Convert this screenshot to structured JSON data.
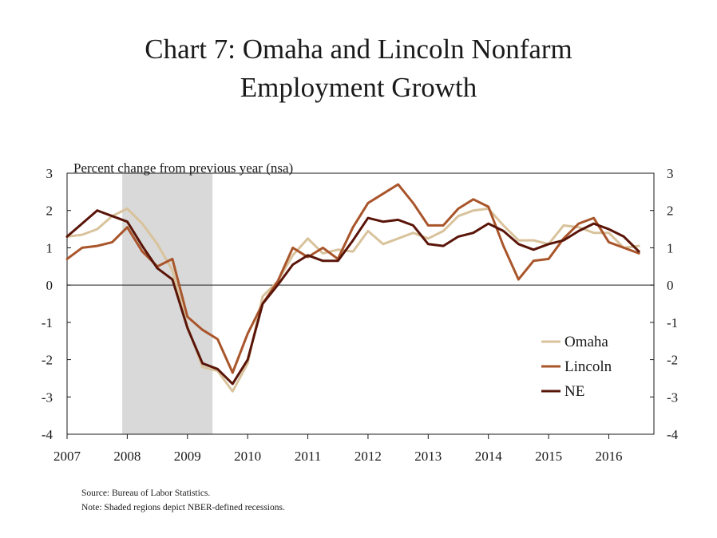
{
  "title_line1": "Chart 7: Omaha and Lincoln Nonfarm",
  "title_line2": "Employment Growth",
  "source": "Source: Bureau of Labor Statistics.",
  "note": "Note: Shaded regions depict NBER-defined recessions.",
  "chart_data": {
    "type": "line",
    "ylabel": "Percent change from previous year (nsa)",
    "ylim": [
      -4,
      3
    ],
    "yticks": [
      3,
      2,
      1,
      0,
      -1,
      -2,
      -3,
      -4
    ],
    "xlim": [
      2007,
      2016.75
    ],
    "xticks": [
      "2007",
      "2008",
      "2009",
      "2010",
      "2011",
      "2012",
      "2013",
      "2014",
      "2015",
      "2016"
    ],
    "recession": [
      2007.9167,
      2009.4167
    ],
    "legend_position": "right",
    "grid": false,
    "x": [
      2007,
      2007.25,
      2007.5,
      2007.75,
      2008,
      2008.25,
      2008.5,
      2008.75,
      2009,
      2009.25,
      2009.5,
      2009.75,
      2010,
      2010.25,
      2010.5,
      2010.75,
      2011,
      2011.25,
      2011.5,
      2011.75,
      2012,
      2012.25,
      2012.5,
      2012.75,
      2013,
      2013.25,
      2013.5,
      2013.75,
      2014,
      2014.25,
      2014.5,
      2014.75,
      2015,
      2015.25,
      2015.5,
      2015.75,
      2016,
      2016.25,
      2016.5
    ],
    "series": [
      {
        "name": "Omaha",
        "color": "#d9c39c",
        "values": [
          1.3,
          1.35,
          1.5,
          1.85,
          2.05,
          1.65,
          1.1,
          0.4,
          -1.1,
          -2.2,
          -2.3,
          -2.85,
          -2.1,
          -0.3,
          0.1,
          0.8,
          1.25,
          0.85,
          0.95,
          0.9,
          1.45,
          1.1,
          1.25,
          1.4,
          1.25,
          1.45,
          1.85,
          2.0,
          2.05,
          1.6,
          1.2,
          1.2,
          1.1,
          1.6,
          1.55,
          1.4,
          1.4,
          1.0,
          1.05
        ]
      },
      {
        "name": "Lincoln",
        "color": "#a9552b",
        "values": [
          0.7,
          1.0,
          1.05,
          1.15,
          1.55,
          0.9,
          0.5,
          0.7,
          -0.85,
          -1.2,
          -1.45,
          -2.35,
          -1.3,
          -0.5,
          0.1,
          1.0,
          0.75,
          1.0,
          0.7,
          1.55,
          2.2,
          2.45,
          2.7,
          2.2,
          1.6,
          1.6,
          2.05,
          2.3,
          2.1,
          1.05,
          0.15,
          0.65,
          0.7,
          1.25,
          1.65,
          1.8,
          1.15,
          1.0,
          0.85
        ]
      },
      {
        "name": "NE",
        "color": "#5a1509",
        "values": [
          1.3,
          1.65,
          2.0,
          1.85,
          1.7,
          1.05,
          0.45,
          0.15,
          -1.15,
          -2.1,
          -2.25,
          -2.65,
          -2.0,
          -0.5,
          0.0,
          0.55,
          0.8,
          0.65,
          0.65,
          1.2,
          1.8,
          1.7,
          1.75,
          1.6,
          1.1,
          1.05,
          1.3,
          1.4,
          1.65,
          1.45,
          1.1,
          0.95,
          1.1,
          1.2,
          1.45,
          1.65,
          1.5,
          1.3,
          0.9
        ]
      }
    ]
  }
}
